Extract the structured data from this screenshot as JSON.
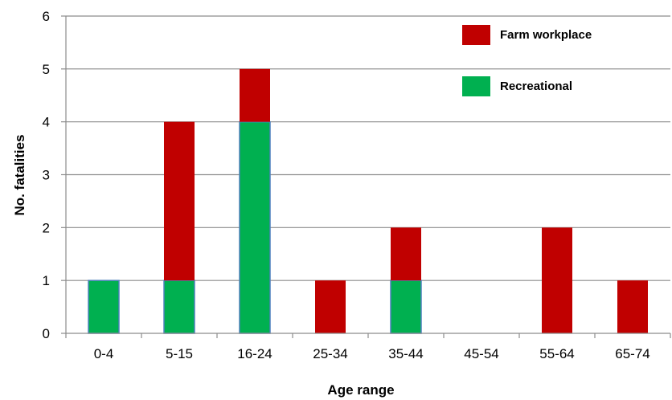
{
  "chart_data": {
    "type": "bar",
    "stacked": true,
    "title": "",
    "xlabel": "Age range",
    "ylabel": "No. fatalities",
    "ylim": [
      0,
      6
    ],
    "yticks": [
      "0",
      "1",
      "2",
      "3",
      "4",
      "5",
      "6"
    ],
    "grid": "horizontal",
    "legend_position": "top-right",
    "categories": [
      "0-4",
      "5-15",
      "16-24",
      "25-34",
      "35-44",
      "45-54",
      "55-64",
      "65-74"
    ],
    "series": [
      {
        "name": "Recreational",
        "color": "#00b050",
        "values": [
          1,
          1,
          4,
          0,
          1,
          0,
          0,
          0
        ]
      },
      {
        "name": "Farm workplace",
        "color": "#c00000",
        "values": [
          0,
          3,
          1,
          1,
          1,
          0,
          2,
          1
        ]
      }
    ]
  }
}
